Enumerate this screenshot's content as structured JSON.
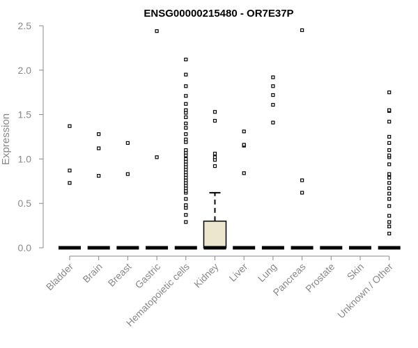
{
  "chart_data": {
    "type": "box",
    "title": "ENSG00000215480 - OR7E37P",
    "ylabel": "Expression",
    "xlabel": "",
    "ylim": [
      0,
      2.5
    ],
    "y_ticks": [
      "0.0",
      "0.5",
      "1.0",
      "1.5",
      "2.0",
      "2.5"
    ],
    "categories": [
      "Bladder",
      "Brain",
      "Breast",
      "Gastric",
      "Hematopoietic cells",
      "Kidney",
      "Liver",
      "Lung",
      "Pancreas",
      "Prostate",
      "Skin",
      "Unknown / Other"
    ],
    "boxes": [
      {
        "category": "Bladder",
        "q1": 0,
        "median": 0,
        "q3": 0,
        "whisker_low": 0,
        "whisker_high": 0,
        "outliers": [
          0.73,
          0.87,
          1.37
        ]
      },
      {
        "category": "Brain",
        "q1": 0,
        "median": 0,
        "q3": 0,
        "whisker_low": 0,
        "whisker_high": 0,
        "outliers": [
          0.81,
          1.12,
          1.28
        ]
      },
      {
        "category": "Breast",
        "q1": 0,
        "median": 0,
        "q3": 0,
        "whisker_low": 0,
        "whisker_high": 0,
        "outliers": [
          0.83,
          1.18
        ]
      },
      {
        "category": "Gastric",
        "q1": 0,
        "median": 0,
        "q3": 0,
        "whisker_low": 0,
        "whisker_high": 0,
        "outliers": [
          1.02,
          2.44
        ]
      },
      {
        "category": "Hematopoietic cells",
        "q1": 0,
        "median": 0,
        "q3": 0,
        "whisker_low": 0,
        "whisker_high": 0,
        "outliers": [
          0.29,
          0.37,
          0.45,
          0.48,
          0.55,
          0.62,
          0.64,
          0.67,
          0.7,
          0.73,
          0.76,
          0.79,
          0.82,
          0.85,
          0.88,
          0.91,
          0.94,
          0.97,
          1.0,
          1.04,
          1.07,
          1.1,
          1.19,
          1.22,
          1.28,
          1.35,
          1.4,
          1.47,
          1.52,
          1.55,
          1.62,
          1.71,
          1.82,
          1.95,
          2.12
        ]
      },
      {
        "category": "Kidney",
        "q1": 0,
        "median": 0,
        "q3": 0.3,
        "whisker_low": 0,
        "whisker_high": 0.62,
        "fill": "#ebe6cd",
        "outliers": [
          0.92,
          0.99,
          1.02,
          1.06,
          1.43,
          1.53
        ]
      },
      {
        "category": "Liver",
        "q1": 0,
        "median": 0,
        "q3": 0,
        "whisker_low": 0,
        "whisker_high": 0,
        "outliers": [
          0.84,
          1.15,
          1.16,
          1.31
        ]
      },
      {
        "category": "Lung",
        "q1": 0,
        "median": 0,
        "q3": 0,
        "whisker_low": 0,
        "whisker_high": 0,
        "outliers": [
          1.41,
          1.61,
          1.72,
          1.82,
          1.92
        ]
      },
      {
        "category": "Pancreas",
        "q1": 0,
        "median": 0,
        "q3": 0,
        "whisker_low": 0,
        "whisker_high": 0,
        "outliers": [
          0.62,
          0.76,
          2.45
        ]
      },
      {
        "category": "Prostate",
        "q1": 0,
        "median": 0,
        "q3": 0,
        "whisker_low": 0,
        "whisker_high": 0,
        "outliers": []
      },
      {
        "category": "Skin",
        "q1": 0,
        "median": 0,
        "q3": 0,
        "whisker_low": 0,
        "whisker_high": 0,
        "outliers": []
      },
      {
        "category": "Unknown / Other",
        "q1": 0,
        "median": 0,
        "q3": 0,
        "whisker_low": 0,
        "whisker_high": 0,
        "outliers": [
          0.16,
          0.24,
          0.29,
          0.36,
          0.47,
          0.55,
          0.61,
          0.67,
          0.73,
          0.79,
          0.83,
          0.94,
          1.02,
          1.04,
          1.1,
          1.18,
          1.25,
          1.42,
          1.54,
          1.55,
          1.75
        ]
      }
    ],
    "grid": false,
    "legend": "none",
    "colors": {
      "box_fill": "#ebe6cd",
      "stroke": "#000000",
      "axis": "#888888"
    }
  }
}
